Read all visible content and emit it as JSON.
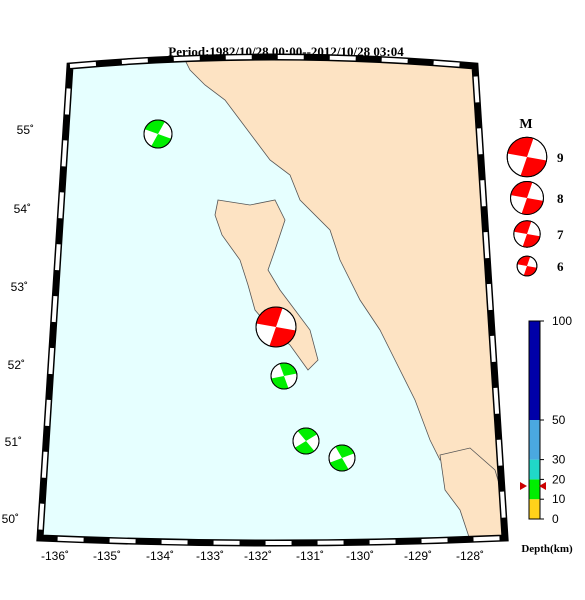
{
  "header": {
    "title": "Period:1982/10/28 00:00--2012/10/28 03:04"
  },
  "latitude_labels": [
    "55˚",
    "54˚",
    "53˚",
    "52˚",
    "51˚",
    "50˚"
  ],
  "longitude_labels": [
    "-136˚",
    "-135˚",
    "-134˚",
    "-133˚",
    "-132˚",
    "-131˚",
    "-130˚",
    "-129˚",
    "-128˚"
  ],
  "magnitude_legend": {
    "title": "M",
    "magnitudes": [
      9,
      8,
      7,
      6
    ]
  },
  "depth_scale": {
    "label": "Depth(km)",
    "ticks": [
      0,
      10,
      20,
      30,
      50,
      100
    ],
    "colors": [
      "#ffd21a",
      "#00ee00",
      "#20d8c8",
      "#4aa8e0",
      "#0000a8"
    ]
  }
}
